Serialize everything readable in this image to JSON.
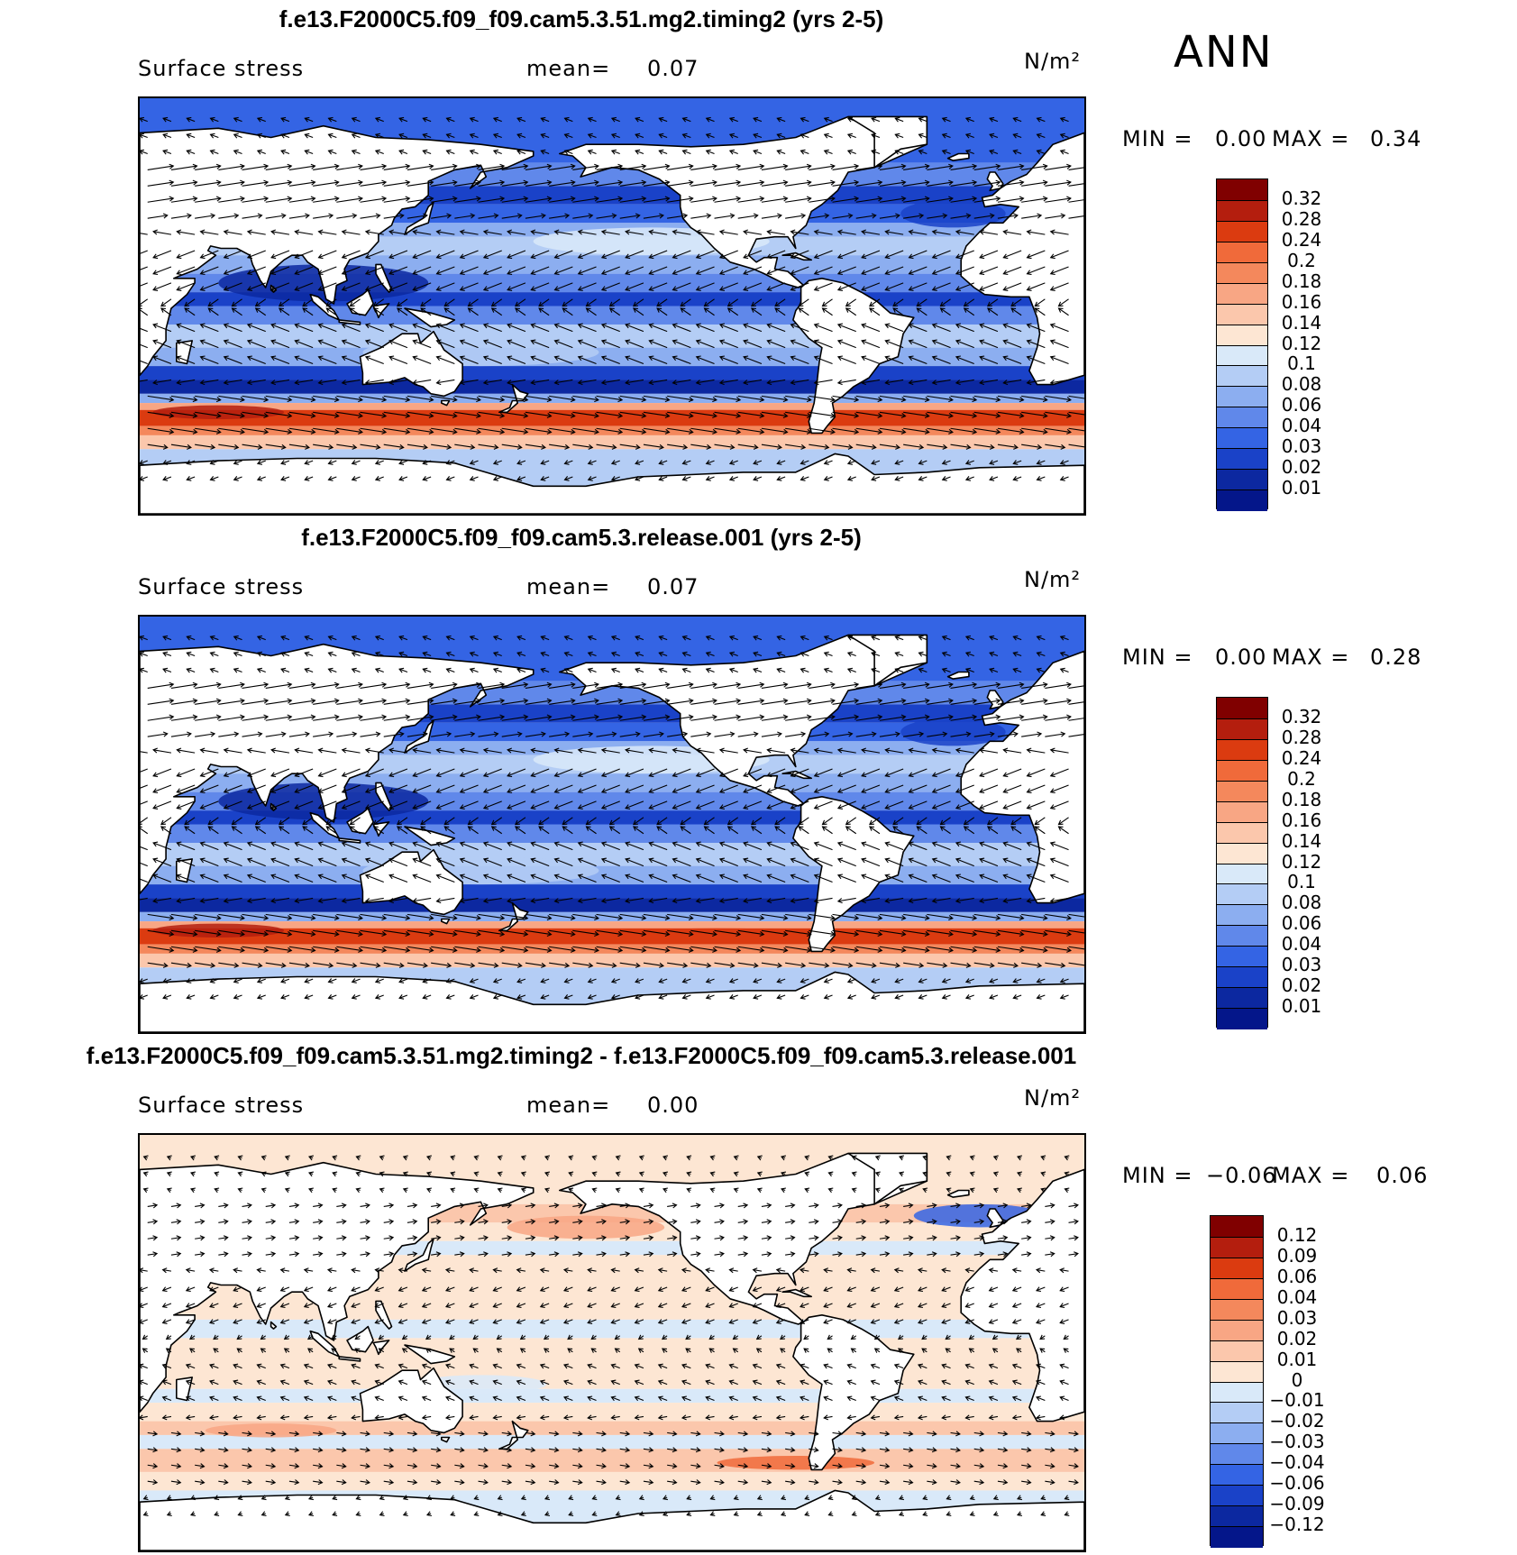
{
  "season": "ANN",
  "panels": [
    {
      "title": "f.e13.F2000C5.f09_f09.cam5.3.51.mg2.timing2 (yrs 2-5)",
      "variable": "Surface stress",
      "mean_label": "mean=",
      "mean_value": "0.07",
      "units": "N/m²",
      "min_label": "MIN =",
      "min_value": "0.00",
      "max_label": "MAX =",
      "max_value": "0.34",
      "colorbar": {
        "levels": [
          "0.32",
          "0.28",
          "0.24",
          "0.2",
          "0.18",
          "0.16",
          "0.14",
          "0.12",
          "0.1",
          "0.08",
          "0.06",
          "0.04",
          "0.03",
          "0.02",
          "0.01"
        ],
        "colors": [
          "#800000",
          "#b41e0e",
          "#db3b10",
          "#f06a3a",
          "#f4885c",
          "#f8a684",
          "#fbc7ac",
          "#fde6d3",
          "#d9e9f9",
          "#b4cdf5",
          "#8caef0",
          "#6088ea",
          "#3464e4",
          "#1a42c8",
          "#0c28a0",
          "#04168a"
        ]
      }
    },
    {
      "title": "f.e13.F2000C5.f09_f09.cam5.3.release.001 (yrs 2-5)",
      "variable": "Surface stress",
      "mean_label": "mean=",
      "mean_value": "0.07",
      "units": "N/m²",
      "min_label": "MIN =",
      "min_value": "0.00",
      "max_label": "MAX =",
      "max_value": "0.28",
      "colorbar": {
        "levels": [
          "0.32",
          "0.28",
          "0.24",
          "0.2",
          "0.18",
          "0.16",
          "0.14",
          "0.12",
          "0.1",
          "0.08",
          "0.06",
          "0.04",
          "0.03",
          "0.02",
          "0.01"
        ],
        "colors": [
          "#800000",
          "#b41e0e",
          "#db3b10",
          "#f06a3a",
          "#f4885c",
          "#f8a684",
          "#fbc7ac",
          "#fde6d3",
          "#d9e9f9",
          "#b4cdf5",
          "#8caef0",
          "#6088ea",
          "#3464e4",
          "#1a42c8",
          "#0c28a0",
          "#04168a"
        ]
      }
    },
    {
      "title": "f.e13.F2000C5.f09_f09.cam5.3.51.mg2.timing2 - f.e13.F2000C5.f09_f09.cam5.3.release.001",
      "variable": "Surface stress",
      "mean_label": "mean=",
      "mean_value": "0.00",
      "units": "N/m²",
      "min_label": "MIN =",
      "min_value": "−0.06",
      "max_label": "MAX =",
      "max_value": "0.06",
      "colorbar": {
        "levels": [
          "0.12",
          "0.09",
          "0.06",
          "0.04",
          "0.03",
          "0.02",
          "0.01",
          "0",
          "−0.01",
          "−0.02",
          "−0.03",
          "−0.04",
          "−0.06",
          "−0.09",
          "−0.12"
        ],
        "colors": [
          "#800000",
          "#b41e0e",
          "#db3b10",
          "#f06a3a",
          "#f4885c",
          "#f8a684",
          "#fbc7ac",
          "#fde6d3",
          "#d9e9f9",
          "#b4cdf5",
          "#8caef0",
          "#6088ea",
          "#3464e4",
          "#1a42c8",
          "#0c28a0",
          "#04168a"
        ]
      }
    }
  ]
}
